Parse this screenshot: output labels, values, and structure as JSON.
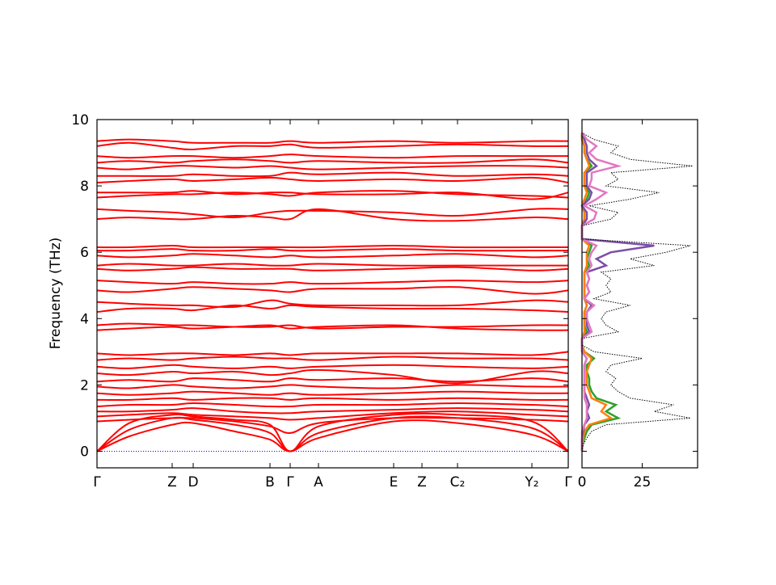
{
  "chart_data": {
    "type": "band_structure",
    "ylabel": "Frequency (THz)",
    "ylim": [
      -0.5,
      10
    ],
    "yticks": [
      0,
      2,
      4,
      6,
      8,
      10
    ],
    "xlim": [
      0,
      583
    ],
    "xticks": [
      {
        "value": 0,
        "label": "Γ"
      },
      {
        "value": 93,
        "label": "Z"
      },
      {
        "value": 119,
        "label": "D"
      },
      {
        "value": 214,
        "label": "B"
      },
      {
        "value": 239,
        "label": "Γ"
      },
      {
        "value": 274,
        "label": "A"
      },
      {
        "value": 367,
        "label": "E"
      },
      {
        "value": 402,
        "label": "Z"
      },
      {
        "value": 446,
        "label": "C₂"
      },
      {
        "value": 538,
        "label": "Y₂"
      },
      {
        "value": 583,
        "label": "Γ"
      }
    ],
    "color": "#ff0000",
    "zero_line_color": "#0000ff",
    "x": [
      0,
      40,
      93,
      119,
      170,
      214,
      239,
      274,
      367,
      446,
      538,
      583
    ],
    "bands": [
      [
        0,
        0.45,
        0.8,
        0.85,
        0.6,
        0.35,
        0,
        0.4,
        0.9,
        0.85,
        0.5,
        0
      ],
      [
        0,
        0.65,
        1.0,
        0.95,
        0.8,
        0.55,
        0,
        0.55,
        1.0,
        1.0,
        0.7,
        0
      ],
      [
        0,
        0.85,
        1.1,
        1.05,
        0.95,
        0.8,
        0,
        0.75,
        1.1,
        1.1,
        0.9,
        0
      ],
      [
        0.9,
        0.95,
        1.0,
        1.0,
        0.9,
        0.75,
        0.55,
        0.85,
        1.0,
        1.0,
        0.95,
        0.9
      ],
      [
        1.05,
        1.1,
        1.15,
        1.1,
        1.05,
        1.0,
        0.95,
        1.0,
        1.15,
        1.2,
        1.1,
        1.05
      ],
      [
        1.2,
        1.2,
        1.25,
        1.3,
        1.2,
        1.15,
        1.15,
        1.2,
        1.25,
        1.3,
        1.25,
        1.2
      ],
      [
        1.35,
        1.4,
        1.4,
        1.45,
        1.4,
        1.35,
        1.35,
        1.4,
        1.4,
        1.45,
        1.4,
        1.35
      ],
      [
        1.55,
        1.55,
        1.6,
        1.55,
        1.6,
        1.6,
        1.55,
        1.6,
        1.55,
        1.6,
        1.55,
        1.55
      ],
      [
        1.75,
        1.7,
        1.75,
        1.8,
        1.75,
        1.7,
        1.75,
        1.7,
        1.75,
        1.8,
        1.75,
        1.75
      ],
      [
        1.95,
        1.9,
        2.0,
        1.95,
        1.9,
        1.95,
        2.0,
        1.95,
        1.9,
        2.0,
        1.95,
        1.95
      ],
      [
        2.1,
        2.15,
        2.1,
        2.2,
        2.15,
        2.1,
        2.2,
        2.15,
        2.2,
        2.1,
        2.2,
        2.1
      ],
      [
        2.35,
        2.3,
        2.4,
        2.35,
        2.4,
        2.3,
        2.35,
        2.45,
        2.3,
        2.05,
        2.4,
        2.35
      ],
      [
        2.55,
        2.5,
        2.6,
        2.55,
        2.5,
        2.55,
        2.5,
        2.55,
        2.6,
        2.55,
        2.5,
        2.55
      ],
      [
        2.75,
        2.8,
        2.75,
        2.8,
        2.85,
        2.8,
        2.8,
        2.75,
        2.85,
        2.8,
        2.8,
        2.75
      ],
      [
        2.95,
        2.9,
        2.95,
        2.95,
        2.9,
        2.95,
        2.9,
        2.95,
        2.95,
        2.95,
        2.9,
        3.0
      ],
      [
        3.65,
        3.7,
        3.75,
        3.7,
        3.75,
        3.8,
        3.7,
        3.75,
        3.8,
        3.7,
        3.65,
        3.65
      ],
      [
        3.8,
        3.85,
        3.8,
        3.8,
        3.75,
        3.75,
        3.8,
        3.7,
        3.75,
        3.75,
        3.8,
        3.8
      ],
      [
        4.2,
        4.3,
        4.3,
        4.25,
        4.4,
        4.3,
        4.4,
        4.35,
        4.3,
        4.3,
        4.25,
        4.2
      ],
      [
        4.5,
        4.45,
        4.4,
        4.4,
        4.35,
        4.55,
        4.45,
        4.4,
        4.4,
        4.4,
        4.55,
        4.5
      ],
      [
        4.85,
        4.8,
        4.9,
        4.95,
        4.9,
        4.85,
        4.8,
        4.9,
        4.9,
        4.95,
        4.75,
        4.85
      ],
      [
        5.15,
        5.1,
        5.05,
        5.1,
        5.05,
        5.05,
        5.1,
        5.05,
        5.1,
        5.15,
        5.1,
        5.15
      ],
      [
        5.5,
        5.45,
        5.5,
        5.55,
        5.5,
        5.5,
        5.5,
        5.45,
        5.5,
        5.55,
        5.45,
        5.5
      ],
      [
        5.6,
        5.65,
        5.6,
        5.6,
        5.65,
        5.6,
        5.6,
        5.65,
        5.6,
        5.6,
        5.6,
        5.6
      ],
      [
        5.9,
        5.85,
        5.9,
        5.95,
        5.9,
        5.85,
        5.9,
        5.85,
        5.9,
        5.95,
        5.85,
        5.9
      ],
      [
        6.05,
        6.05,
        6.1,
        6.05,
        6.05,
        6.1,
        6.05,
        6.05,
        6.1,
        6.05,
        6.05,
        6.05
      ],
      [
        6.15,
        6.15,
        6.2,
        6.15,
        6.15,
        6.15,
        6.15,
        6.15,
        6.2,
        6.15,
        6.15,
        6.15
      ],
      [
        7.0,
        7.05,
        7.0,
        7.0,
        7.1,
        7.05,
        7.0,
        7.3,
        7.0,
        6.95,
        7.05,
        7.0
      ],
      [
        7.3,
        7.25,
        7.2,
        7.15,
        7.05,
        7.2,
        7.25,
        7.25,
        7.2,
        7.1,
        7.3,
        7.3
      ],
      [
        7.65,
        7.7,
        7.75,
        7.75,
        7.8,
        7.75,
        7.7,
        7.8,
        7.85,
        7.75,
        7.7,
        7.65
      ],
      [
        7.8,
        7.8,
        7.8,
        7.85,
        7.75,
        7.8,
        7.8,
        7.75,
        7.75,
        7.8,
        7.6,
        7.8
      ],
      [
        8.1,
        8.15,
        8.2,
        8.15,
        8.2,
        8.25,
        8.2,
        8.15,
        8.2,
        8.15,
        8.25,
        8.1
      ],
      [
        8.3,
        8.3,
        8.3,
        8.35,
        8.3,
        8.3,
        8.4,
        8.35,
        8.4,
        8.3,
        8.35,
        8.3
      ],
      [
        8.55,
        8.5,
        8.6,
        8.6,
        8.55,
        8.6,
        8.55,
        8.5,
        8.55,
        8.6,
        8.6,
        8.55
      ],
      [
        8.7,
        8.75,
        8.7,
        8.75,
        8.8,
        8.75,
        8.7,
        8.75,
        8.7,
        8.7,
        8.8,
        8.7
      ],
      [
        8.9,
        8.85,
        8.9,
        8.9,
        8.85,
        8.9,
        8.95,
        8.9,
        8.85,
        8.9,
        8.9,
        8.9
      ],
      [
        9.2,
        9.3,
        9.15,
        9.1,
        9.2,
        9.2,
        9.25,
        9.15,
        9.2,
        9.25,
        9.2,
        9.2
      ],
      [
        9.35,
        9.4,
        9.35,
        9.3,
        9.3,
        9.3,
        9.35,
        9.3,
        9.35,
        9.3,
        9.35,
        9.35
      ]
    ],
    "dos": {
      "xlim": [
        0,
        48
      ],
      "xticks": [
        0,
        25
      ],
      "frequencies": [
        0,
        0.2,
        0.4,
        0.6,
        0.8,
        1.0,
        1.2,
        1.4,
        1.6,
        1.8,
        2.0,
        2.2,
        2.4,
        2.6,
        2.8,
        3.0,
        3.2,
        3.4,
        3.6,
        3.8,
        4.0,
        4.2,
        4.4,
        4.6,
        4.8,
        5.0,
        5.2,
        5.4,
        5.6,
        5.8,
        6.0,
        6.2,
        6.4,
        6.6,
        6.8,
        7.0,
        7.2,
        7.4,
        7.6,
        7.8,
        8.0,
        8.2,
        8.4,
        8.6,
        8.8,
        9.0,
        9.2,
        9.4,
        9.6
      ],
      "total_color": "#000000",
      "total": [
        0,
        0.5,
        2,
        4,
        10,
        45,
        30,
        38,
        20,
        15,
        12,
        14,
        10,
        12,
        25,
        5,
        0,
        0,
        15,
        10,
        8,
        10,
        20,
        5,
        12,
        10,
        12,
        8,
        30,
        20,
        35,
        45,
        0,
        0,
        0,
        12,
        15,
        3,
        20,
        32,
        10,
        15,
        12,
        46,
        20,
        12,
        15,
        5,
        0
      ],
      "partials": [
        {
          "color": "#2ca02c",
          "values": [
            0,
            0.2,
            1,
            2,
            4,
            15,
            10,
            14,
            6,
            4,
            3,
            3,
            2,
            2,
            5,
            1,
            0,
            0,
            2,
            1,
            1,
            1,
            2,
            1,
            1,
            1,
            1,
            1,
            3,
            2,
            3,
            4,
            0,
            0,
            0,
            1,
            1,
            0,
            2,
            3,
            1,
            1,
            1,
            4,
            2,
            1,
            1,
            0,
            0
          ]
        },
        {
          "color": "#ff7f0e",
          "values": [
            0,
            0.1,
            0.5,
            1,
            3,
            12,
            8,
            10,
            4,
            3,
            2,
            2,
            2,
            3,
            4,
            1,
            0,
            0,
            1,
            1,
            1,
            1,
            2,
            1,
            1,
            1,
            1,
            1,
            2,
            2,
            2,
            3,
            0,
            0,
            0,
            1,
            1,
            0,
            1,
            2,
            1,
            1,
            1,
            3,
            2,
            1,
            1,
            0,
            0
          ]
        },
        {
          "color": "#7b4fa6",
          "values": [
            0,
            0,
            0,
            0.5,
            1,
            3,
            2,
            3,
            2,
            1,
            1,
            1,
            1,
            1,
            2,
            0,
            0,
            0,
            3,
            2,
            2,
            2,
            4,
            1,
            3,
            2,
            3,
            2,
            10,
            6,
            12,
            30,
            0,
            0,
            0,
            2,
            2,
            0,
            3,
            4,
            2,
            2,
            2,
            6,
            3,
            2,
            2,
            1,
            0
          ]
        },
        {
          "color": "#e377c2",
          "values": [
            0,
            0,
            0,
            0,
            1,
            2,
            2,
            2,
            1,
            1,
            1,
            1,
            1,
            1,
            2,
            0,
            0,
            0,
            4,
            3,
            2,
            2,
            5,
            1,
            3,
            2,
            3,
            2,
            4,
            3,
            4,
            6,
            0,
            0,
            0,
            5,
            6,
            1,
            6,
            10,
            3,
            4,
            4,
            15,
            6,
            3,
            6,
            2,
            0
          ]
        }
      ]
    }
  }
}
